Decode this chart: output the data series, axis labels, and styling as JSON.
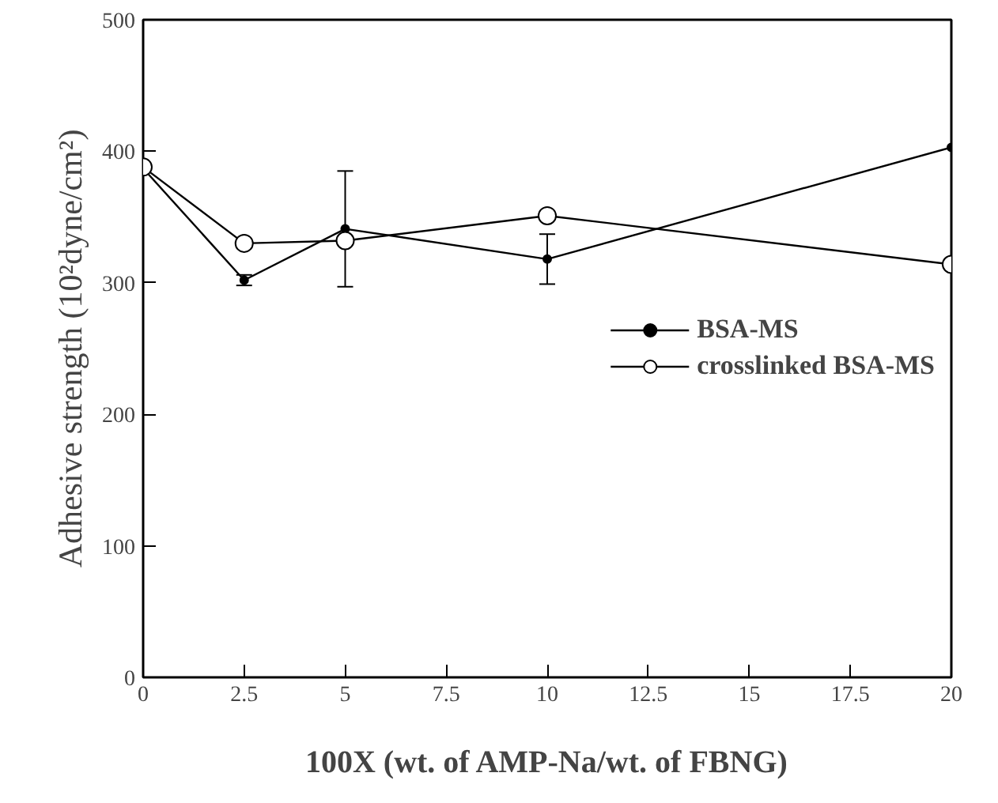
{
  "chart_data": {
    "type": "line",
    "xlabel": "100X (wt. of AMP-Na/wt. of FBNG)",
    "ylabel": "Adhesive strength (10²dyne/cm²)",
    "x": [
      0,
      2.5,
      5,
      10,
      20
    ],
    "series": [
      {
        "name": "BSA-MS",
        "color": "#000000",
        "marker": "circle",
        "values": [
          387,
          302,
          341,
          318,
          403
        ],
        "errors": [
          null,
          4,
          44,
          19,
          null
        ]
      },
      {
        "name": "crosslinked BSA-MS",
        "color": "#000000",
        "marker": "circle_open",
        "values": [
          388,
          330,
          332,
          351,
          314
        ]
      }
    ],
    "xlim": [
      0,
      20
    ],
    "xticks": [
      0,
      2.5,
      5,
      7.5,
      10,
      12.5,
      15,
      17.5,
      20
    ],
    "ylim": [
      0,
      500
    ],
    "yticks": [
      0,
      100,
      200,
      300,
      400,
      500
    ],
    "legend": "right",
    "grid": false
  }
}
